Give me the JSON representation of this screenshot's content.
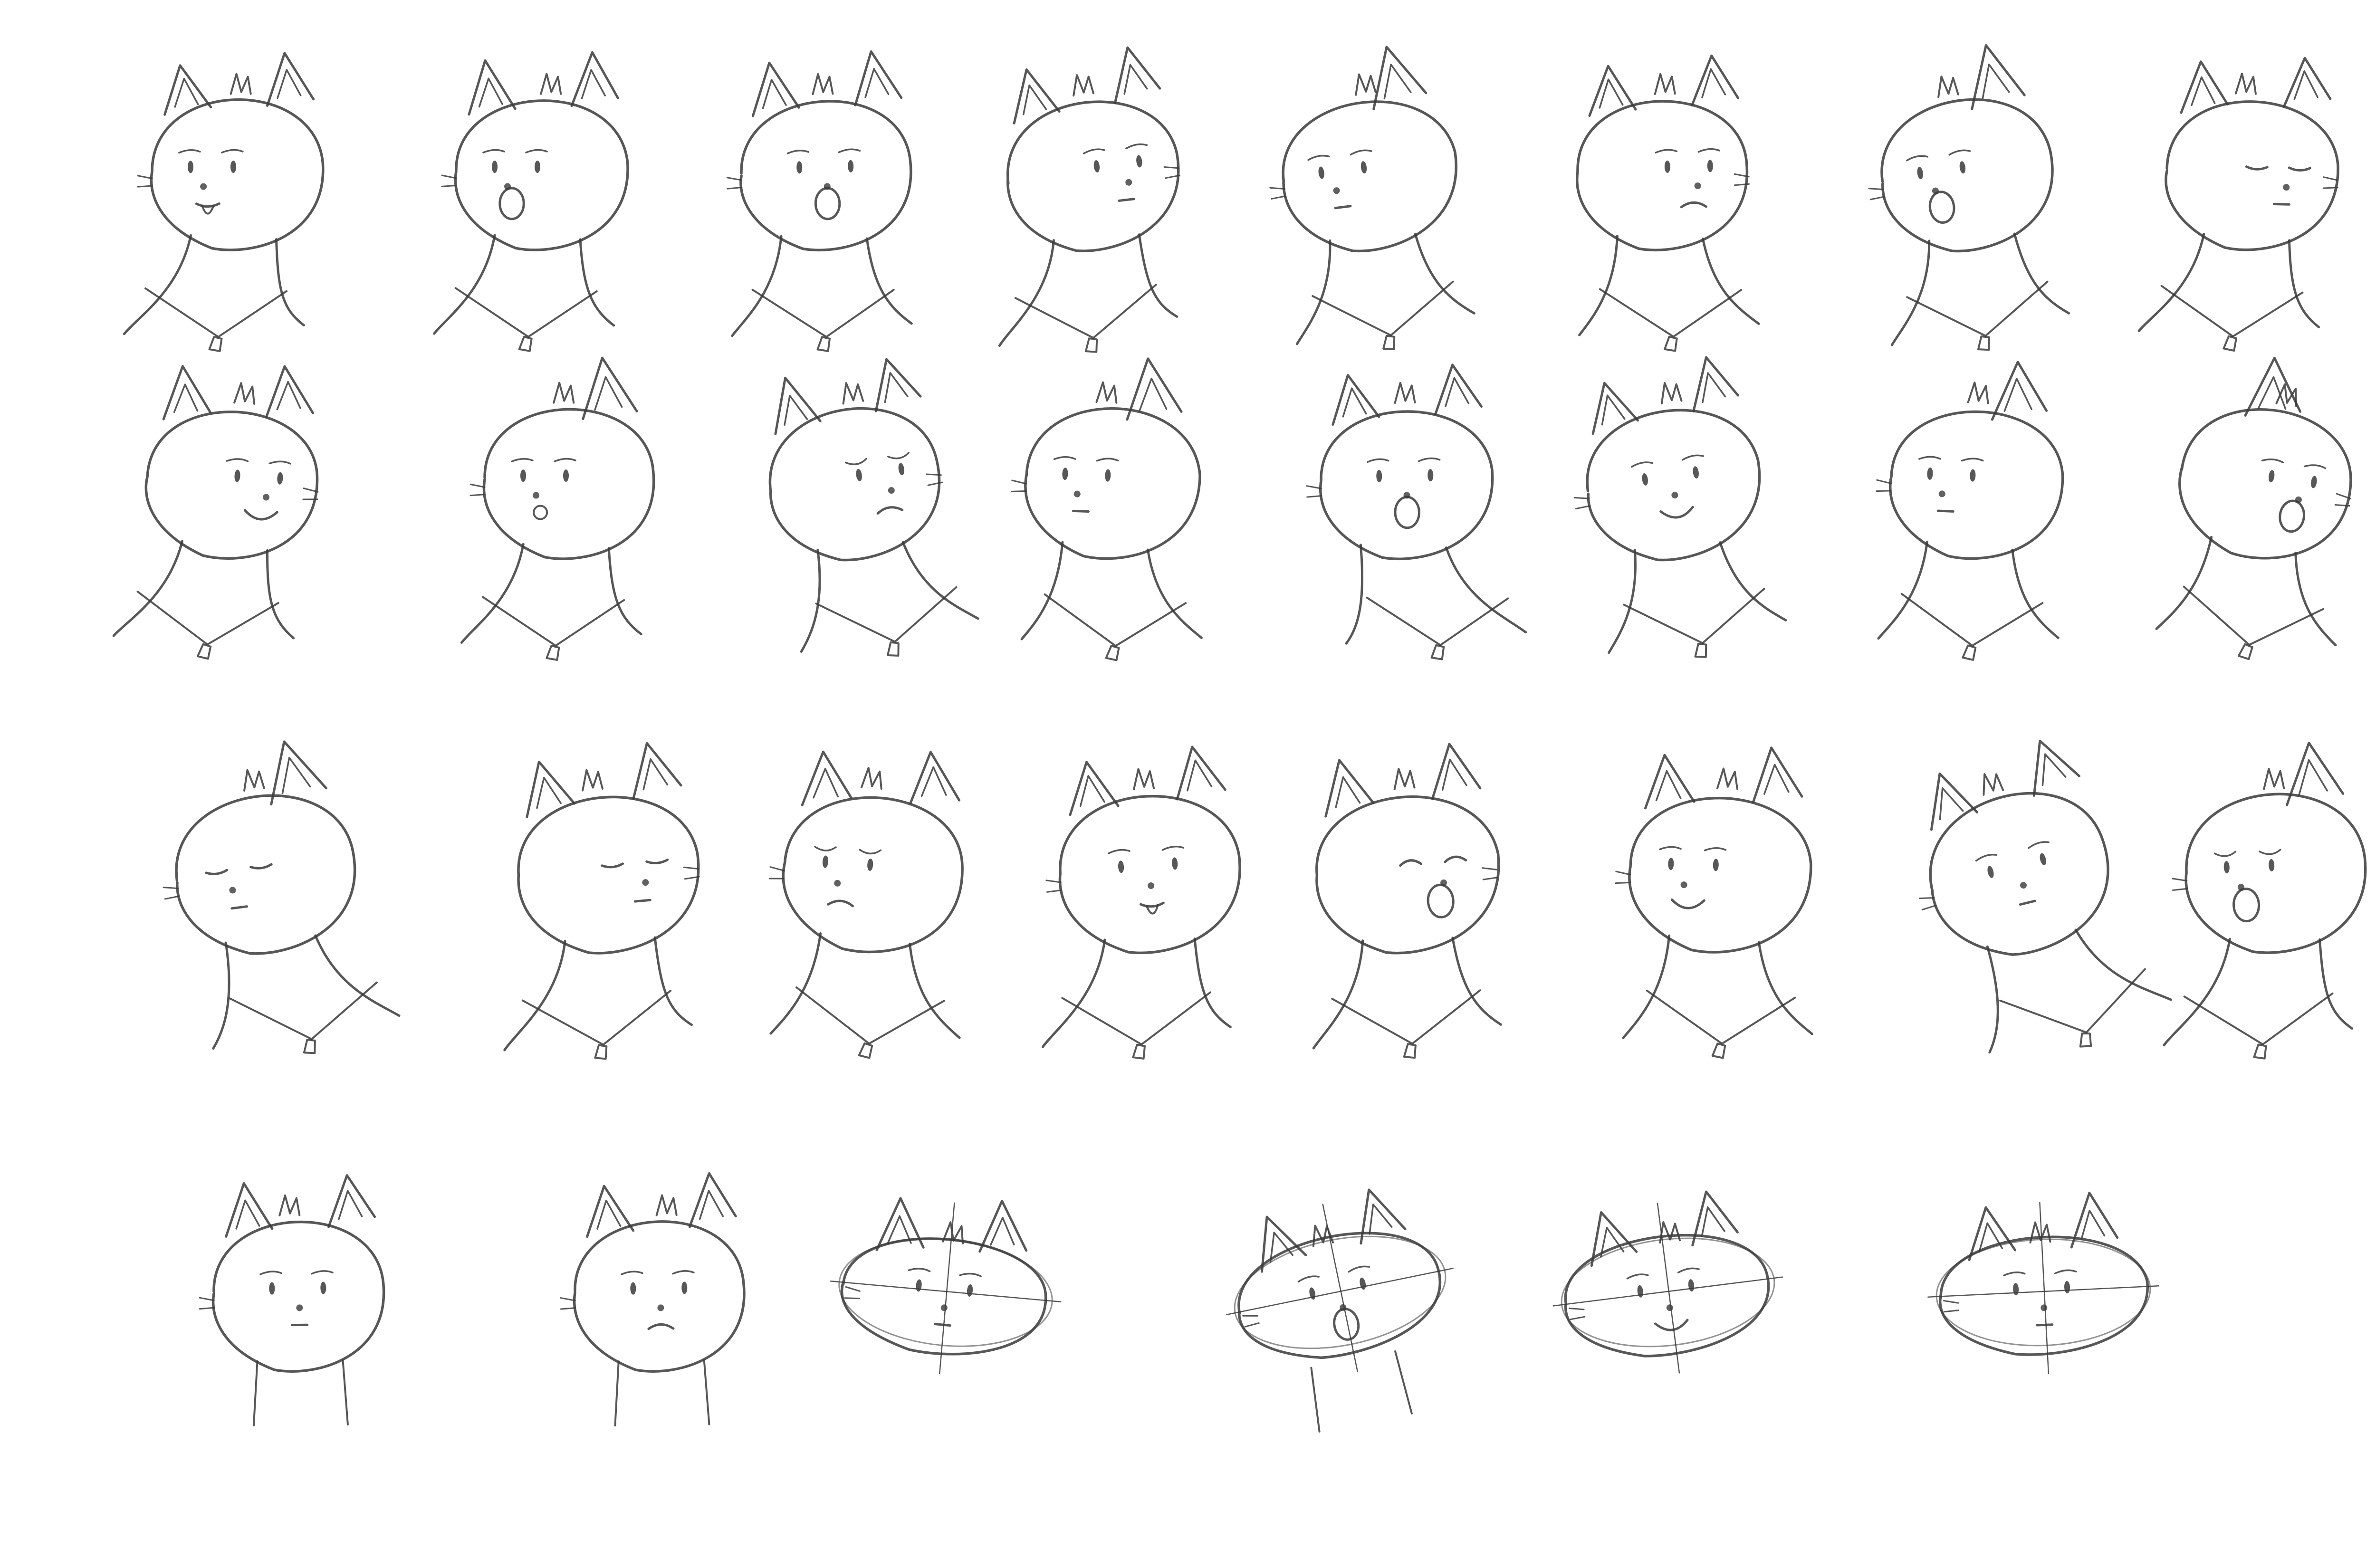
{
  "sheet": {
    "background": "#ffffff",
    "ink": "#3a3a3a",
    "text": []
  },
  "rows": [
    {
      "label": "",
      "sketches": [
        {
          "view": "three-quarter-left",
          "expression": "tongue-out"
        },
        {
          "view": "three-quarter-left",
          "expression": "surprised"
        },
        {
          "view": "front",
          "expression": "open-mouth"
        },
        {
          "view": "three-quarter-right",
          "expression": "neutral"
        },
        {
          "view": "profile-left",
          "expression": "neutral"
        },
        {
          "view": "three-quarter-right",
          "expression": "frown"
        },
        {
          "view": "profile-left",
          "expression": "shouting"
        },
        {
          "view": "three-quarter-right",
          "expression": "squint"
        }
      ]
    },
    {
      "label": "",
      "sketches": [
        {
          "view": "three-quarter-right",
          "expression": "smirk"
        },
        {
          "view": "profile-left",
          "expression": "pout"
        },
        {
          "view": "three-quarter-right",
          "expression": "grumpy"
        },
        {
          "view": "profile-left",
          "expression": "tearful"
        },
        {
          "view": "front",
          "expression": "yawn"
        },
        {
          "view": "front-tilted",
          "expression": "grin"
        },
        {
          "view": "profile-left",
          "expression": "looking-up"
        },
        {
          "view": "profile-right",
          "expression": "shout"
        }
      ]
    },
    {
      "label": "",
      "sketches": [
        {
          "view": "profile-left",
          "expression": "sleepy"
        },
        {
          "view": "three-quarter-right",
          "expression": "eyes-closed"
        },
        {
          "view": "three-quarter-left",
          "expression": "annoyed"
        },
        {
          "view": "front",
          "expression": "tongue-out"
        },
        {
          "view": "three-quarter-right",
          "expression": "laughing"
        },
        {
          "view": "three-quarter-left",
          "expression": "smile"
        },
        {
          "view": "front-tilted",
          "expression": "dazed"
        },
        {
          "view": "profile-left",
          "expression": "angry-shout"
        }
      ]
    },
    {
      "label": "",
      "sketches": [
        {
          "view": "front",
          "expression": "neutral"
        },
        {
          "view": "front",
          "expression": "frown"
        },
        {
          "view": "front-construction",
          "expression": "neutral"
        },
        {
          "view": "construction-tilted",
          "expression": "open-mouth"
        },
        {
          "view": "front-construction",
          "expression": "smile"
        },
        {
          "view": "construction-profile",
          "expression": "neutral"
        }
      ]
    }
  ]
}
